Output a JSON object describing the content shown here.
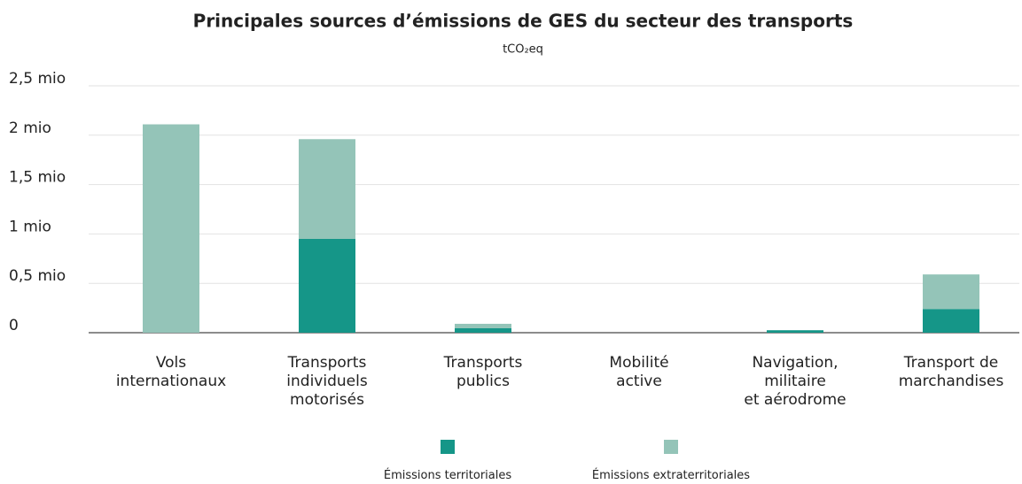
{
  "chart_data": {
    "type": "stacked_bar",
    "title": "Principales sources d’émissions de GES du secteur des transports",
    "subtitle": "tCO₂eq",
    "categories": [
      "Vols\ninternationaux",
      "Transports\nindividuels\nmotorisés",
      "Transports\npublics",
      "Mobilité\nactive",
      "Navigation,\nmilitaire\net aérodrome",
      "Transport de\nmarchandises"
    ],
    "series": [
      {
        "name": "Émissions territoriales",
        "color": "#159688",
        "values": [
          0,
          950000,
          45000,
          0,
          25000,
          240000
        ]
      },
      {
        "name": "Émissions extraterritoriales",
        "color": "#94c4b8",
        "values": [
          2110000,
          1010000,
          45000,
          0,
          0,
          350000
        ]
      }
    ],
    "ylim": [
      0,
      2500000
    ],
    "yticks": [
      0,
      {
        "value": 500000,
        "label": "0,5 mio"
      },
      {
        "value": 1000000,
        "label": "1 mio"
      },
      {
        "value": 1500000,
        "label": "1,5 mio"
      },
      {
        "value": 2000000,
        "label": "2 mio"
      },
      {
        "value": 2500000,
        "label": "2,5 mio"
      }
    ],
    "grid": true
  }
}
